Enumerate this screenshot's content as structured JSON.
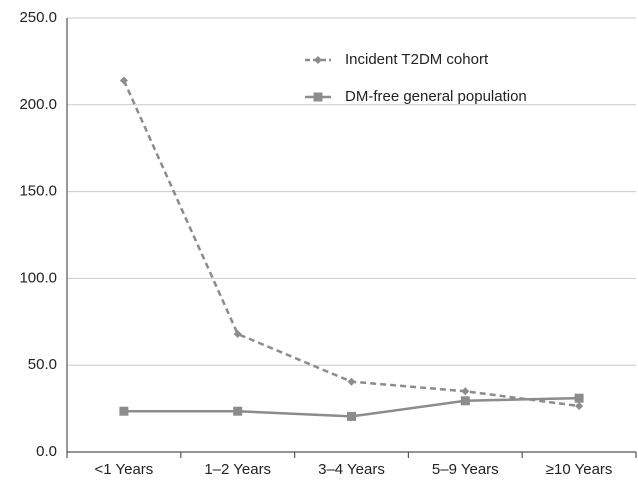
{
  "chart_data": {
    "type": "line",
    "categories": [
      "<1 Years",
      "1–2 Years",
      "3–4 Years",
      "5–9 Years",
      "≥10 Years"
    ],
    "series": [
      {
        "name": "Incident T2DM cohort",
        "color": "#8c8c8c",
        "dashed": true,
        "marker": "diamond",
        "values": [
          214,
          68,
          40.5,
          35,
          26.5
        ]
      },
      {
        "name": "DM-free general population",
        "color": "#8c8c8c",
        "dashed": false,
        "marker": "square",
        "values": [
          23.5,
          23.5,
          20.5,
          29.5,
          31
        ]
      }
    ],
    "ylim": [
      0,
      250
    ],
    "yticks": [
      {
        "value": 0,
        "label": "0.0"
      },
      {
        "value": 50,
        "label": "50.0"
      },
      {
        "value": 100,
        "label": "100.0"
      },
      {
        "value": 150,
        "label": "150.0"
      },
      {
        "value": 200,
        "label": "200.0"
      },
      {
        "value": 250,
        "label": "250.0"
      }
    ],
    "grid": true,
    "legend": "top-right"
  }
}
